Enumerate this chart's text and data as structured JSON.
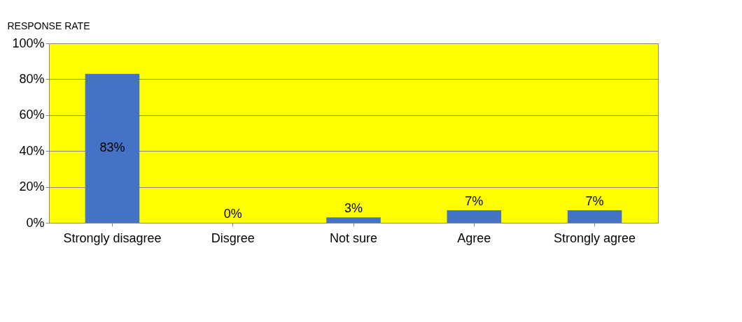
{
  "chart_data": {
    "type": "bar",
    "ylabel": "RESPONSE RATE",
    "categories": [
      "Strongly disagree",
      "Disgree",
      "Not sure",
      "Agree",
      "Strongly agree"
    ],
    "values": [
      83,
      0,
      3,
      7,
      7
    ],
    "color": "#4472c4",
    "value_labels": [
      "83%",
      "0%",
      "3%",
      "7%",
      "7%"
    ],
    "ylim": [
      0,
      100
    ],
    "yticks": [
      {
        "value": 0,
        "label": "0%"
      },
      {
        "value": 20,
        "label": "20%"
      },
      {
        "value": 40,
        "label": "40%"
      },
      {
        "value": 60,
        "label": "60%"
      },
      {
        "value": 80,
        "label": "80%"
      },
      {
        "value": 100,
        "label": "100%"
      }
    ],
    "grid": "y"
  }
}
